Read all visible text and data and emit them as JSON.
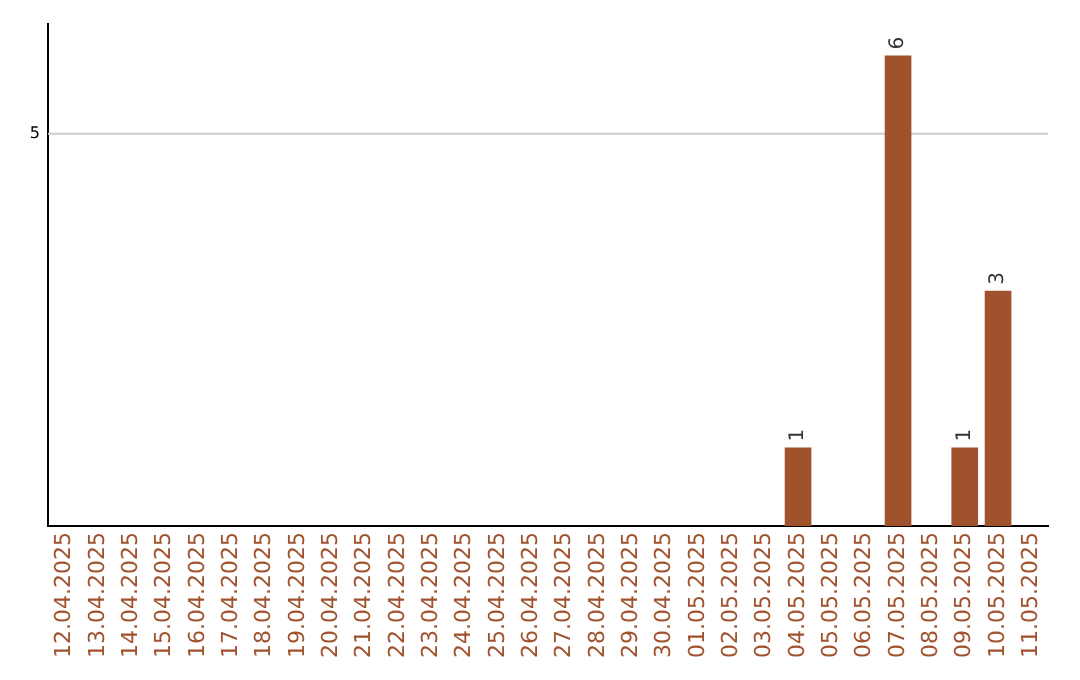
{
  "chart_data": {
    "type": "bar",
    "categories": [
      "12.04.2025",
      "13.04.2025",
      "14.04.2025",
      "15.04.2025",
      "16.04.2025",
      "17.04.2025",
      "18.04.2025",
      "19.04.2025",
      "20.04.2025",
      "21.04.2025",
      "22.04.2025",
      "23.04.2025",
      "24.04.2025",
      "25.04.2025",
      "26.04.2025",
      "27.04.2025",
      "28.04.2025",
      "29.04.2025",
      "30.04.2025",
      "01.05.2025",
      "02.05.2025",
      "03.05.2025",
      "04.05.2025",
      "05.05.2025",
      "06.05.2025",
      "07.05.2025",
      "08.05.2025",
      "09.05.2025",
      "10.05.2025",
      "11.05.2025"
    ],
    "values": [
      null,
      null,
      null,
      null,
      null,
      null,
      null,
      null,
      null,
      null,
      null,
      null,
      null,
      null,
      null,
      null,
      null,
      null,
      null,
      null,
      null,
      null,
      1,
      null,
      null,
      6,
      null,
      1,
      3,
      null
    ],
    "color": "#a0522d",
    "ylim": [
      0,
      6.4
    ],
    "ref_lines": [
      {
        "axis": "y",
        "value": 5,
        "label": "5",
        "color": "#cccccc"
      }
    ],
    "data_labels": true
  }
}
